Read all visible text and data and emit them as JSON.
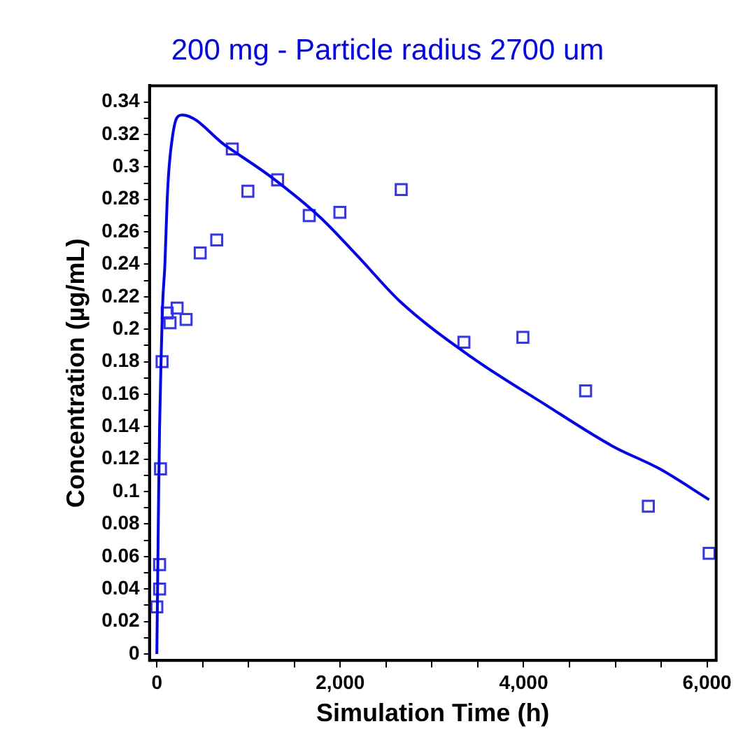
{
  "chart_data": {
    "type": "scatter",
    "title": "200 mg - Particle radius 2700 um",
    "xlabel": "Simulation Time (h)",
    "ylabel": "Concentration (µg/mL)",
    "xlim": [
      -80,
      6100
    ],
    "ylim": [
      -0.004,
      0.35
    ],
    "xticks": [
      0,
      {
        "value": 500,
        "label": null
      },
      {
        "value": 1000,
        "label": null
      },
      {
        "value": 1500,
        "label": null
      },
      {
        "value": 2000,
        "label": "2,000"
      },
      {
        "value": 2500,
        "label": null
      },
      {
        "value": 3000,
        "label": null
      },
      {
        "value": 3500,
        "label": null
      },
      {
        "value": 4000,
        "label": "4,000"
      },
      {
        "value": 4500,
        "label": null
      },
      {
        "value": 5000,
        "label": null
      },
      {
        "value": 5500,
        "label": null
      },
      {
        "value": 6000,
        "label": "6,000"
      }
    ],
    "yticks": [
      0,
      {
        "value": 0.01,
        "label": null
      },
      0.02,
      {
        "value": 0.03,
        "label": null
      },
      0.04,
      {
        "value": 0.05,
        "label": null
      },
      0.06,
      {
        "value": 0.07,
        "label": null
      },
      0.08,
      {
        "value": 0.09,
        "label": null
      },
      0.1,
      {
        "value": 0.11,
        "label": null
      },
      0.12,
      {
        "value": 0.13,
        "label": null
      },
      0.14,
      {
        "value": 0.15,
        "label": null
      },
      0.16,
      {
        "value": 0.17,
        "label": null
      },
      0.18,
      {
        "value": 0.19,
        "label": null
      },
      0.2,
      {
        "value": 0.21,
        "label": null
      },
      0.22,
      {
        "value": 0.23,
        "label": null
      },
      0.24,
      {
        "value": 0.25,
        "label": null
      },
      0.26,
      {
        "value": 0.27,
        "label": null
      },
      0.28,
      {
        "value": 0.29,
        "label": null
      },
      0.3,
      {
        "value": 0.31,
        "label": null
      },
      0.32,
      {
        "value": 0.33,
        "label": null
      },
      0.34
    ],
    "grid": false,
    "legend": false,
    "series": [
      {
        "type": "line",
        "color": "#0000ff",
        "marker": "none",
        "line_style": "solid",
        "x": [
          0,
          20,
          30,
          46,
          62,
          88,
          113,
          134,
          174,
          216,
          278,
          751,
          1265,
          1780,
          2191,
          2654,
          3426,
          4224,
          4969,
          5483,
          6023
        ],
        "values": [
          0,
          0.1,
          0.14,
          0.18,
          0.214,
          0.24,
          0.28,
          0.3,
          0.32,
          0.33,
          0.332,
          0.313,
          0.293,
          0.269,
          0.245,
          0.217,
          0.183,
          0.154,
          0.128,
          0.114,
          0.095
        ]
      },
      {
        "color": "#3333ff",
        "marker": "square",
        "x": [
          0,
          30,
          30,
          40,
          57,
          113,
          144,
          221,
          319,
          473,
          653,
          823,
          993,
          1317,
          1662,
          1996,
          2665,
          3349,
          3992,
          4676,
          5360,
          6023
        ],
        "values": [
          0.029,
          0.04,
          0.055,
          0.114,
          0.18,
          0.21,
          0.204,
          0.213,
          0.206,
          0.247,
          0.255,
          0.311,
          0.285,
          0.292,
          0.27,
          0.272,
          0.286,
          0.192,
          0.195,
          0.162,
          0.091,
          0.062
        ]
      }
    ]
  }
}
